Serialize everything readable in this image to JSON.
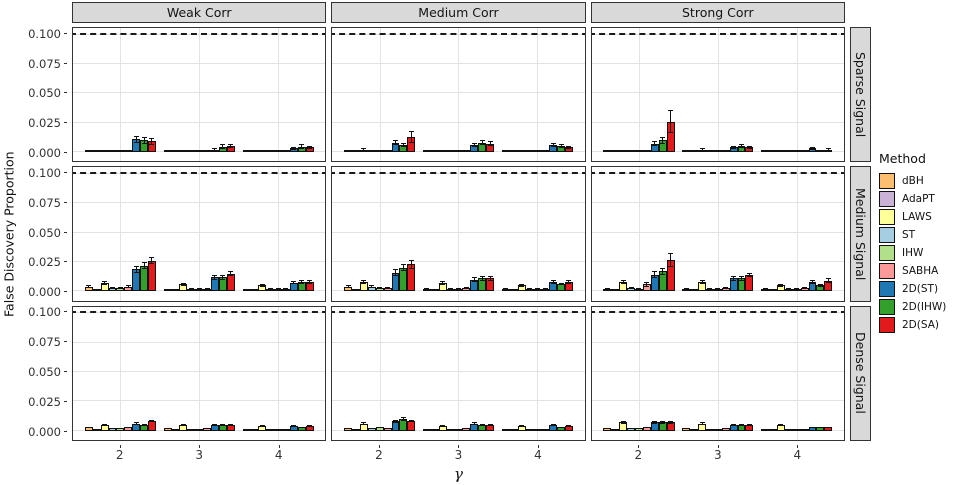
{
  "chart_data": {
    "type": "bar",
    "title": "",
    "x_label": "γ",
    "y_label": "False Discovery Proportion",
    "x_ticks": [
      "2",
      "3",
      "4"
    ],
    "y_ticks": [
      {
        "value": 0.1,
        "label": "0.100"
      },
      {
        "value": 0.075,
        "label": "0.075"
      },
      {
        "value": 0.05,
        "label": "0.050"
      },
      {
        "value": 0.025,
        "label": "0.025"
      },
      {
        "value": 0.0,
        "label": "0.000"
      }
    ],
    "ylim": [
      0,
      0.105
    ],
    "grid": true,
    "reference_line": {
      "y": 0.1,
      "style": "dashed",
      "color": "#1a1a1a"
    },
    "facet_cols": [
      "Weak Corr",
      "Medium Corr",
      "Strong Corr"
    ],
    "facet_rows": [
      "Sparse Signal",
      "Medium Signal",
      "Dense Signal"
    ],
    "legend": {
      "title": "Method",
      "position": "right"
    },
    "methods": [
      {
        "name": "dBH",
        "color": "#FDBF6F"
      },
      {
        "name": "AdaPT",
        "color": "#CAB2D6"
      },
      {
        "name": "LAWS",
        "color": "#FFFF99"
      },
      {
        "name": "ST",
        "color": "#A6CEE3"
      },
      {
        "name": "IHW",
        "color": "#B2DF8A"
      },
      {
        "name": "SABHA",
        "color": "#FB9A99"
      },
      {
        "name": "2D(ST)",
        "color": "#1F78B4"
      },
      {
        "name": "2D(IHW)",
        "color": "#33A02C"
      },
      {
        "name": "2D(SA)",
        "color": "#E31A1C"
      }
    ],
    "panels": [
      {
        "row": "Sparse Signal",
        "col": "Weak Corr",
        "groups": [
          {
            "x": "2",
            "values": [
              0.0004,
              0.0003,
              0.0006,
              0.0004,
              0.0004,
              0.0005,
              0.011,
              0.01,
              0.009
            ],
            "errors": [
              0,
              0,
              0,
              0,
              0,
              0,
              0.003,
              0.003,
              0.003
            ]
          },
          {
            "x": "3",
            "values": [
              0.0003,
              0.0002,
              0.0005,
              0.0003,
              0.0003,
              0.0004,
              0.002,
              0.0045,
              0.005
            ],
            "errors": [
              0,
              0,
              0,
              0,
              0,
              0,
              0.001,
              0.002,
              0.002
            ]
          },
          {
            "x": "4",
            "values": [
              0.0003,
              0.0002,
              0.0004,
              0.0003,
              0.0003,
              0.0003,
              0.003,
              0.0045,
              0.004
            ],
            "errors": [
              0,
              0,
              0,
              0,
              0,
              0,
              0.0015,
              0.002,
              0.0015
            ]
          }
        ]
      },
      {
        "row": "Sparse Signal",
        "col": "Medium Corr",
        "groups": [
          {
            "x": "2",
            "values": [
              0.0003,
              0.0002,
              0.002,
              0.0004,
              0.0004,
              0.0005,
              0.008,
              0.006,
              0.013
            ],
            "errors": [
              0,
              0,
              0.001,
              0,
              0,
              0,
              0.002,
              0.002,
              0.005
            ]
          },
          {
            "x": "3",
            "values": [
              0.0003,
              0.0002,
              0.0006,
              0.0004,
              0.0004,
              0.0004,
              0.006,
              0.008,
              0.007
            ],
            "errors": [
              0,
              0,
              0,
              0,
              0,
              0,
              0.002,
              0.002,
              0.002
            ]
          },
          {
            "x": "4",
            "values": [
              0.0002,
              0.0002,
              0.0004,
              0.0003,
              0.0003,
              0.0003,
              0.006,
              0.005,
              0.004
            ],
            "errors": [
              0,
              0,
              0,
              0,
              0,
              0,
              0.002,
              0.0015,
              0.0015
            ]
          }
        ]
      },
      {
        "row": "Sparse Signal",
        "col": "Strong Corr",
        "groups": [
          {
            "x": "2",
            "values": [
              0.0003,
              0.0002,
              0.0006,
              0.0004,
              0.0004,
              0.0005,
              0.007,
              0.01,
              0.026
            ],
            "errors": [
              0,
              0,
              0,
              0,
              0,
              0,
              0.002,
              0.003,
              0.01
            ]
          },
          {
            "x": "3",
            "values": [
              0.0003,
              0.0002,
              0.002,
              0.0003,
              0.0003,
              0.0004,
              0.004,
              0.005,
              0.004
            ],
            "errors": [
              0,
              0,
              0.001,
              0,
              0,
              0,
              0.0015,
              0.002,
              0.0015
            ]
          },
          {
            "x": "4",
            "values": [
              0.0002,
              0.0002,
              0.0003,
              0.0002,
              0.0002,
              0.0003,
              0.003,
              0.001,
              0.002
            ],
            "errors": [
              0,
              0,
              0,
              0,
              0,
              0,
              0.0015,
              0.0005,
              0.001
            ]
          }
        ]
      },
      {
        "row": "Medium Signal",
        "col": "Weak Corr",
        "groups": [
          {
            "x": "2",
            "values": [
              0.004,
              0.0005,
              0.007,
              0.003,
              0.003,
              0.004,
              0.019,
              0.022,
              0.026
            ],
            "errors": [
              0.001,
              0,
              0.002,
              0.001,
              0.001,
              0.001,
              0.003,
              0.003,
              0.003
            ]
          },
          {
            "x": "3",
            "values": [
              0.001,
              0.0003,
              0.006,
              0.002,
              0.002,
              0.002,
              0.012,
              0.012,
              0.015
            ],
            "errors": [
              0.0005,
              0,
              0.0015,
              0.0005,
              0.0005,
              0.0005,
              0.002,
              0.002,
              0.002
            ]
          },
          {
            "x": "4",
            "values": [
              0.001,
              0.0003,
              0.005,
              0.002,
              0.002,
              0.002,
              0.0075,
              0.008,
              0.008
            ],
            "errors": [
              0.0005,
              0,
              0.001,
              0.0005,
              0.0005,
              0.0005,
              0.0015,
              0.0015,
              0.0015
            ]
          }
        ]
      },
      {
        "row": "Medium Signal",
        "col": "Medium Corr",
        "groups": [
          {
            "x": "2",
            "values": [
              0.004,
              0.0005,
              0.008,
              0.004,
              0.003,
              0.003,
              0.016,
              0.02,
              0.023
            ],
            "errors": [
              0.001,
              0,
              0.002,
              0.001,
              0.001,
              0.001,
              0.003,
              0.003,
              0.004
            ]
          },
          {
            "x": "3",
            "values": [
              0.002,
              0.0003,
              0.007,
              0.002,
              0.002,
              0.003,
              0.01,
              0.011,
              0.011
            ],
            "errors": [
              0.0005,
              0,
              0.0015,
              0.0005,
              0.0005,
              0.001,
              0.002,
              0.002,
              0.002
            ]
          },
          {
            "x": "4",
            "values": [
              0.002,
              0.0003,
              0.005,
              0.002,
              0.002,
              0.002,
              0.008,
              0.006,
              0.008
            ],
            "errors": [
              0.0005,
              0,
              0.001,
              0.0005,
              0.0005,
              0.0005,
              0.0015,
              0.001,
              0.0015
            ]
          }
        ]
      },
      {
        "row": "Medium Signal",
        "col": "Strong Corr",
        "groups": [
          {
            "x": "2",
            "values": [
              0.002,
              0.0004,
              0.008,
              0.003,
              0.002,
              0.006,
              0.014,
              0.017,
              0.027
            ],
            "errors": [
              0.0005,
              0,
              0.002,
              0.001,
              0.0005,
              0.002,
              0.003,
              0.003,
              0.006
            ]
          },
          {
            "x": "3",
            "values": [
              0.002,
              0.0003,
              0.008,
              0.002,
              0.002,
              0.003,
              0.011,
              0.011,
              0.014
            ],
            "errors": [
              0.0005,
              0,
              0.002,
              0.0005,
              0.0005,
              0.001,
              0.002,
              0.002,
              0.002
            ]
          },
          {
            "x": "4",
            "values": [
              0.002,
              0.0003,
              0.005,
              0.002,
              0.002,
              0.003,
              0.008,
              0.005,
              0.009
            ],
            "errors": [
              0.0005,
              0,
              0.001,
              0.0005,
              0.0005,
              0.001,
              0.0015,
              0.001,
              0.002
            ]
          }
        ]
      },
      {
        "row": "Dense Signal",
        "col": "Weak Corr",
        "groups": [
          {
            "x": "2",
            "values": [
              0.003,
              0.0004,
              0.005,
              0.002,
              0.002,
              0.003,
              0.006,
              0.005,
              0.008
            ],
            "errors": [
              0.0005,
              0,
              0.001,
              0.0005,
              0.0005,
              0.0005,
              0.001,
              0.001,
              0.001
            ]
          },
          {
            "x": "3",
            "values": [
              0.002,
              0.0003,
              0.005,
              0.001,
              0.001,
              0.002,
              0.005,
              0.005,
              0.005
            ],
            "errors": [
              0.0005,
              0,
              0.001,
              0.0003,
              0.0003,
              0.0005,
              0.001,
              0.001,
              0.001
            ]
          },
          {
            "x": "4",
            "values": [
              0.001,
              0.0002,
              0.004,
              0.001,
              0.001,
              0.001,
              0.004,
              0.003,
              0.004
            ],
            "errors": [
              0.0003,
              0,
              0.001,
              0.0003,
              0.0003,
              0.0003,
              0.001,
              0.0005,
              0.001
            ]
          }
        ]
      },
      {
        "row": "Dense Signal",
        "col": "Medium Corr",
        "groups": [
          {
            "x": "2",
            "values": [
              0.002,
              0.0003,
              0.006,
              0.002,
              0.003,
              0.002,
              0.008,
              0.01,
              0.008
            ],
            "errors": [
              0.0005,
              0,
              0.001,
              0.0005,
              0.0005,
              0.0005,
              0.0015,
              0.0015,
              0.001
            ]
          },
          {
            "x": "3",
            "values": [
              0.001,
              0.0003,
              0.004,
              0.001,
              0.001,
              0.002,
              0.006,
              0.005,
              0.005
            ],
            "errors": [
              0.0003,
              0,
              0.001,
              0.0003,
              0.0003,
              0.0005,
              0.001,
              0.001,
              0.001
            ]
          },
          {
            "x": "4",
            "values": [
              0.001,
              0.0002,
              0.004,
              0.001,
              0.001,
              0.001,
              0.005,
              0.003,
              0.004
            ],
            "errors": [
              0.0003,
              0,
              0.001,
              0.0003,
              0.0003,
              0.0003,
              0.001,
              0.0005,
              0.001
            ]
          }
        ]
      },
      {
        "row": "Dense Signal",
        "col": "Strong Corr",
        "groups": [
          {
            "x": "2",
            "values": [
              0.002,
              0.0003,
              0.007,
              0.002,
              0.002,
              0.003,
              0.007,
              0.007,
              0.007
            ],
            "errors": [
              0.0005,
              0,
              0.0015,
              0.0005,
              0.0005,
              0.0005,
              0.001,
              0.001,
              0.001
            ]
          },
          {
            "x": "3",
            "values": [
              0.002,
              0.0003,
              0.006,
              0.001,
              0.001,
              0.002,
              0.005,
              0.005,
              0.005
            ],
            "errors": [
              0.0005,
              0,
              0.001,
              0.0003,
              0.0003,
              0.0005,
              0.001,
              0.001,
              0.001
            ]
          },
          {
            "x": "4",
            "values": [
              0.001,
              0.0002,
              0.005,
              0.001,
              0.001,
              0.001,
              0.003,
              0.003,
              0.003
            ],
            "errors": [
              0.0003,
              0,
              0.001,
              0.0003,
              0.0003,
              0.0003,
              0.0005,
              0.0005,
              0.0005
            ]
          }
        ]
      }
    ],
    "layout_hints": {
      "group_centers_frac": [
        0.1875,
        0.5,
        0.8125
      ],
      "group_width_frac": 0.2812,
      "zero_line_frac": 0.07,
      "top_value_frac": 0.95
    }
  }
}
